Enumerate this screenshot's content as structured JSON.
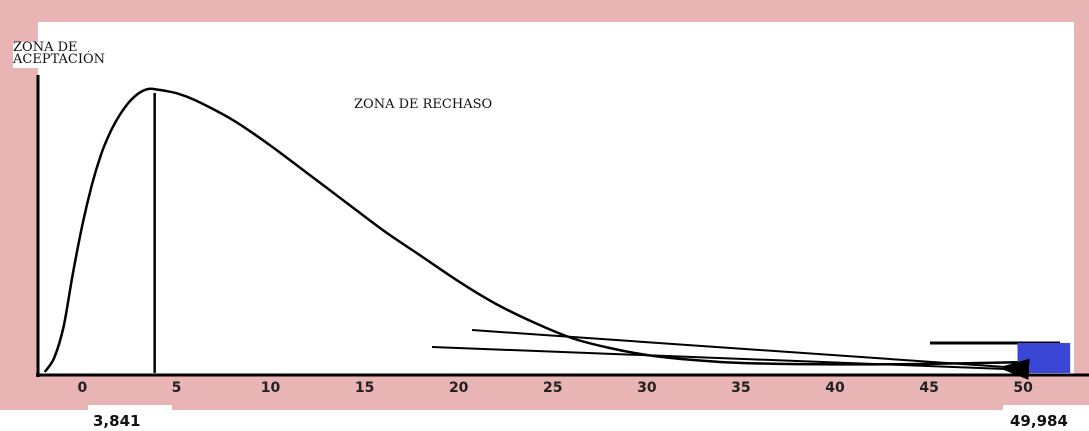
{
  "chart_data": {
    "type": "line",
    "title": "",
    "xlabel": "",
    "ylabel": "",
    "x_ticks": [
      0,
      5,
      10,
      15,
      20,
      25,
      30,
      35,
      40,
      45,
      50
    ],
    "xlim": [
      -2.2,
      53.5
    ],
    "series": [
      {
        "x": [
          -2,
          -1.5,
          -1,
          -0.5,
          0,
          0.5,
          1,
          1.5,
          2,
          2.5,
          3,
          3.5,
          4,
          5,
          6,
          8,
          10,
          12,
          14,
          16,
          18,
          20,
          22,
          24,
          26,
          28,
          30,
          32,
          34,
          36,
          38,
          40,
          42,
          44,
          46,
          48,
          50
        ],
        "y": [
          0.0,
          0.05,
          0.16,
          0.35,
          0.52,
          0.66,
          0.77,
          0.85,
          0.91,
          0.955,
          0.985,
          1.0,
          0.998,
          0.985,
          0.96,
          0.89,
          0.8,
          0.7,
          0.6,
          0.5,
          0.41,
          0.32,
          0.24,
          0.175,
          0.12,
          0.085,
          0.06,
          0.045,
          0.035,
          0.03,
          0.028,
          0.027,
          0.027,
          0.028,
          0.03,
          0.032,
          0.035
        ]
      }
    ],
    "critical_values": [
      {
        "x": 3.841,
        "label": "3,841"
      },
      {
        "x": 49.984,
        "label": "49,984"
      }
    ],
    "annotations": {
      "acceptance_zone": "ZONA DE\nACEPTACIÓN",
      "rejection_zone": "ZONA DE RECHASO"
    },
    "highlight_bar": {
      "x_start": 49.7,
      "x_end": 52.5
    }
  },
  "colors": {
    "frame": "#e8b4b4",
    "curve": "#000000",
    "highlight": "#3a47d6"
  }
}
